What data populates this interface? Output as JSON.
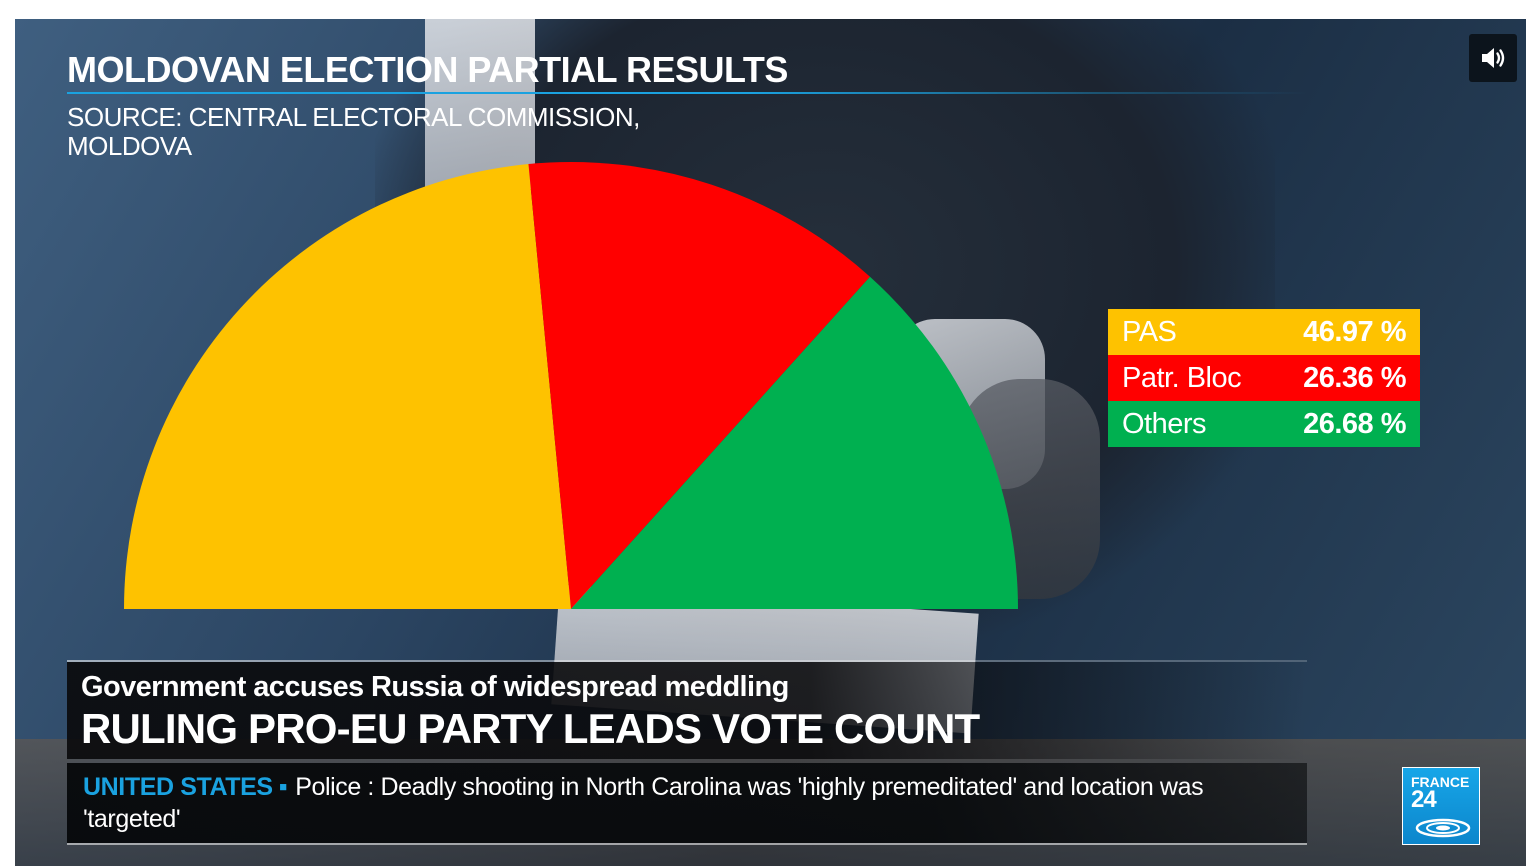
{
  "header": {
    "title": "MOLDOVAN ELECTION PARTIAL RESULTS",
    "source": "SOURCE: CENTRAL ELECTORAL COMMISSION, MOLDOVA"
  },
  "chart_data": {
    "type": "pie",
    "subtype": "half-donut (semicircle)",
    "title": "MOLDOVAN ELECTION PARTIAL RESULTS",
    "categories": [
      "PAS",
      "Patr. Bloc",
      "Others"
    ],
    "values": [
      46.97,
      26.36,
      26.68
    ],
    "value_labels": [
      "46.97 %",
      "26.36 %",
      "26.68 %"
    ],
    "colors": [
      "#fec200",
      "#ff0000",
      "#00b050"
    ],
    "legend_position": "right",
    "legend": [
      {
        "label": "PAS",
        "value": "46.97 %",
        "color": "#fec200"
      },
      {
        "label": "Patr. Bloc",
        "value": "26.36 %",
        "color": "#ff0000"
      },
      {
        "label": "Others",
        "value": "26.68 %",
        "color": "#00b050"
      }
    ]
  },
  "lower_third": {
    "subheadline": "Government accuses Russia of widespread meddling",
    "headline": "RULING PRO-EU PARTY LEADS VOTE COUNT"
  },
  "ticker": {
    "region": "UNITED STATES",
    "separator": "▪",
    "text": "Police : Deadly shooting in North Carolina was 'highly premeditated' and location was 'targeted'"
  },
  "logo": {
    "line1": "FRANCE",
    "line2": "24"
  },
  "controls": {
    "volume_icon": "speaker-volume-icon"
  }
}
